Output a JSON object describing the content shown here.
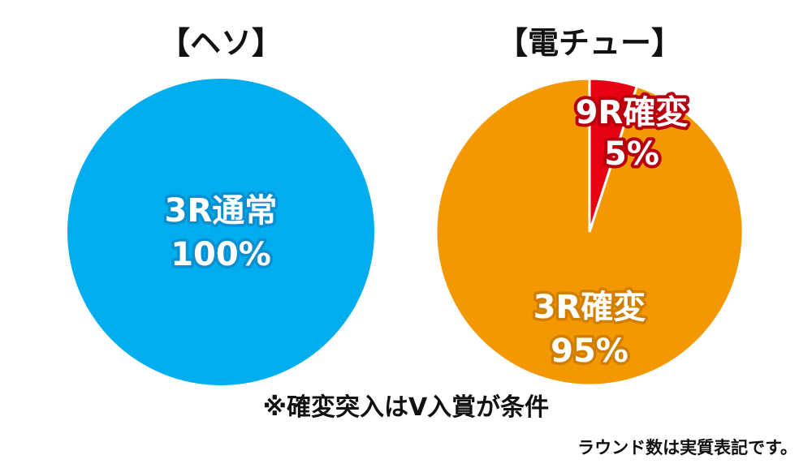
{
  "chart_data": [
    {
      "type": "pie",
      "title": "【ヘソ】",
      "slices": [
        {
          "label": "3R通常",
          "value": 100,
          "value_label": "100%",
          "color": "#00aeef"
        }
      ]
    },
    {
      "type": "pie",
      "title": "【電チュー】",
      "slices": [
        {
          "label": "9R確変",
          "value": 5,
          "value_label": "5%",
          "color": "#e60012"
        },
        {
          "label": "3R確変",
          "value": 95,
          "value_label": "95%",
          "color": "#f39800"
        }
      ]
    }
  ],
  "footnote": "※確変突入はV入賞が条件",
  "subnote": "ラウンド数は実質表記です。",
  "colors": {
    "text": "#111111",
    "slice_separator": "#ffffff"
  }
}
